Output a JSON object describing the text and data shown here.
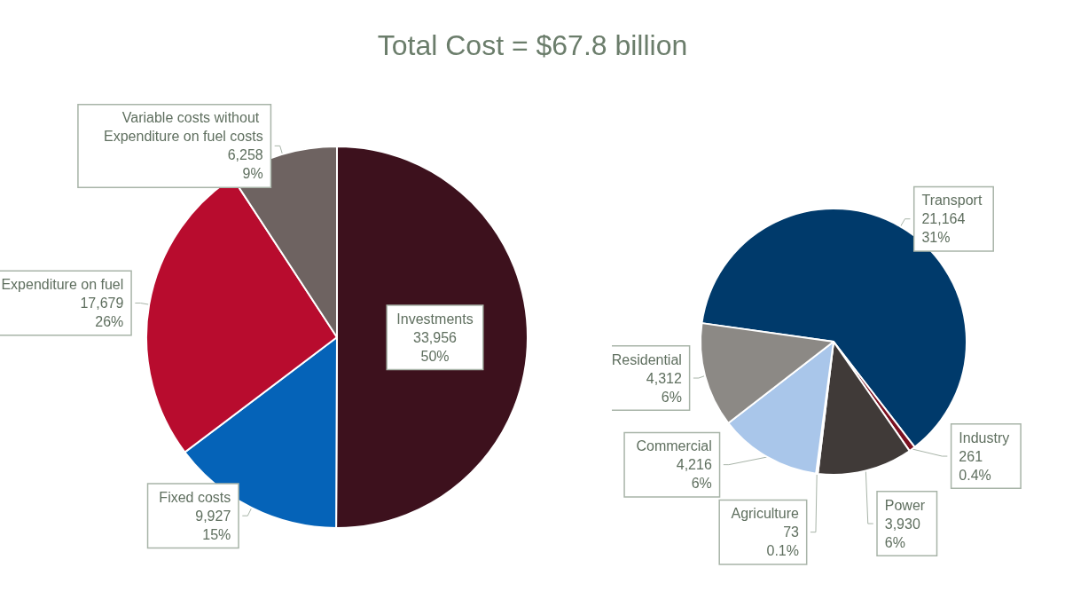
{
  "chart_data": [
    {
      "type": "pie",
      "title": "Total Cost = $67.8 billion",
      "categories": [
        "Investments",
        "Fixed costs",
        "Expenditure on fuel",
        "Variable costs without Expenditure on fuel costs"
      ],
      "values": [
        33956,
        9927,
        17679,
        6258
      ],
      "colors": [
        "#3d111d",
        "#0563b8",
        "#b80c2e",
        "#6e6361"
      ],
      "value_labels": [
        "33,956\n50%",
        "9,927\n15%",
        "17,679\n26%",
        "6,258\n9%"
      ],
      "legend": false
    },
    {
      "type": "pie",
      "categories": [
        "Transport",
        "Industry",
        "Power",
        "Agriculture",
        "Commercial",
        "Residential"
      ],
      "values": [
        21164,
        261,
        3930,
        73,
        4216,
        4312
      ],
      "colors": [
        "#003a6b",
        "#7a1020",
        "#403a38",
        "#d9d9d9",
        "#a9c6ea",
        "#8c8985"
      ],
      "value_labels": [
        "21,164\n31%",
        "261\n0.4%",
        "3,930\n6%",
        "73\n0.1%",
        "4,216\n6%",
        "4,312\n6%"
      ],
      "legend": false
    }
  ]
}
